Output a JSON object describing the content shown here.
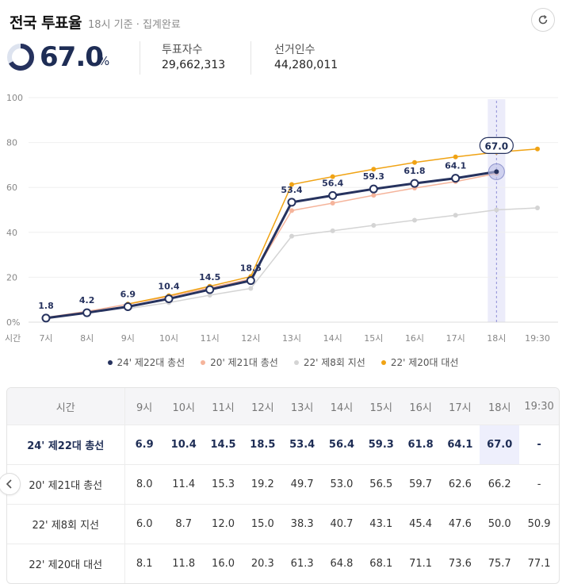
{
  "header": {
    "title": "전국 투표율",
    "subtitle": "18시 기준 · 집계완료"
  },
  "icons": {
    "refresh": "refresh-icon",
    "scroll_left": "chevron-left-icon"
  },
  "summary": {
    "rate": "67.0",
    "rate_unit": "%",
    "rate_fraction": 0.67,
    "voters_label": "투표자수",
    "voters_value": "29,662,313",
    "electors_label": "선거인수",
    "electors_value": "44,280,011"
  },
  "colors": {
    "s24": "#26325e",
    "s20": "#f5b49b",
    "s22": "#d4d4d4",
    "s20p": "#f0a314",
    "highlight": "#ececfa",
    "ring_track": "#dde3ef"
  },
  "chart_data": {
    "type": "line",
    "x": [
      "7시",
      "8시",
      "9시",
      "10시",
      "11시",
      "12시",
      "13시",
      "14시",
      "15시",
      "16시",
      "17시",
      "18시",
      "19:30"
    ],
    "x_axis_label": "시간",
    "ylim": [
      0,
      100
    ],
    "yticks": [
      "0%",
      "20",
      "40",
      "60",
      "80",
      "100"
    ],
    "highlight_x": "18시",
    "series": [
      {
        "name": "20' 제21대 총선",
        "color": "#f5b49b",
        "values": [
          2.1,
          4.8,
          8.0,
          11.4,
          15.3,
          19.2,
          49.7,
          53.0,
          56.5,
          59.7,
          62.6,
          66.2,
          null
        ]
      },
      {
        "name": "22' 제8회 지선",
        "color": "#d4d4d4",
        "values": [
          null,
          null,
          6.0,
          8.7,
          12.0,
          15.0,
          38.3,
          40.7,
          43.1,
          45.4,
          47.6,
          50.0,
          50.9
        ]
      },
      {
        "name": "22' 제20대 대선",
        "color": "#f0a314",
        "values": [
          null,
          null,
          8.1,
          11.8,
          16.0,
          20.3,
          61.3,
          64.8,
          68.1,
          71.1,
          73.6,
          75.7,
          77.1
        ]
      },
      {
        "name": "24' 제22대 총선",
        "color": "#26325e",
        "values": [
          1.8,
          4.2,
          6.9,
          10.4,
          14.5,
          18.5,
          53.4,
          56.4,
          59.3,
          61.8,
          64.1,
          67.0,
          null
        ],
        "labels": [
          "1.8",
          "4.2",
          "6.9",
          "10.4",
          "14.5",
          "18.5",
          "53.4",
          "56.4",
          "59.3",
          "61.8",
          "64.1",
          "67.0",
          null
        ]
      }
    ]
  },
  "legend": [
    {
      "label": "24' 제22대 총선",
      "color": "#26325e"
    },
    {
      "label": "20' 제21대 총선",
      "color": "#f5b49b"
    },
    {
      "label": "22' 제8회 지선",
      "color": "#d4d4d4"
    },
    {
      "label": "22' 제20대 대선",
      "color": "#f0a314"
    }
  ],
  "table": {
    "header_label": "시간",
    "columns": [
      "9시",
      "10시",
      "11시",
      "12시",
      "13시",
      "14시",
      "15시",
      "16시",
      "17시",
      "18시",
      "19:30"
    ],
    "rows": [
      {
        "label": "24' 제22대 총선",
        "values": [
          "6.9",
          "10.4",
          "14.5",
          "18.5",
          "53.4",
          "56.4",
          "59.3",
          "61.8",
          "64.1",
          "67.0",
          "-"
        ]
      },
      {
        "label": "20' 제21대 총선",
        "values": [
          "8.0",
          "11.4",
          "15.3",
          "19.2",
          "49.7",
          "53.0",
          "56.5",
          "59.7",
          "62.6",
          "66.2",
          "-"
        ]
      },
      {
        "label": "22' 제8회 지선",
        "values": [
          "6.0",
          "8.7",
          "12.0",
          "15.0",
          "38.3",
          "40.7",
          "43.1",
          "45.4",
          "47.6",
          "50.0",
          "50.9"
        ]
      },
      {
        "label": "22' 제20대 대선",
        "values": [
          "8.1",
          "11.8",
          "16.0",
          "20.3",
          "61.3",
          "64.8",
          "68.1",
          "71.1",
          "73.6",
          "75.7",
          "77.1"
        ]
      }
    ]
  }
}
